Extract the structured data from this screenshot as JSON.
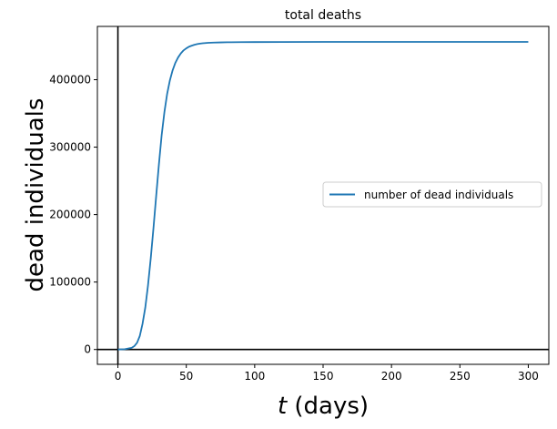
{
  "chart_data": {
    "type": "line",
    "title": "total deaths",
    "xlabel_italic": "t",
    "xlabel_rest": " (days)",
    "ylabel": "dead individuals",
    "xlim": [
      -15,
      315
    ],
    "ylim": [
      -22000,
      479000
    ],
    "xticks": [
      0,
      50,
      100,
      150,
      200,
      250,
      300
    ],
    "yticks": [
      0,
      100000,
      200000,
      300000,
      400000
    ],
    "grid": false,
    "legend_position": "center-right",
    "reference_lines": {
      "x": 0,
      "y": 0,
      "color": "#000000"
    },
    "series": [
      {
        "name": "number of dead individuals",
        "color": "#1f77b4",
        "x": [
          0,
          5,
          10,
          12,
          14,
          16,
          18,
          20,
          22,
          24,
          26,
          28,
          30,
          32,
          34,
          36,
          38,
          40,
          42,
          44,
          46,
          48,
          50,
          52,
          54,
          56,
          58,
          60,
          62,
          64,
          66,
          70,
          75,
          80,
          90,
          100,
          120,
          150,
          200,
          250,
          300
        ],
        "y": [
          0,
          500,
          2500,
          5000,
          10000,
          20000,
          38000,
          62000,
          95000,
          135000,
          180000,
          228000,
          275000,
          318000,
          352000,
          379000,
          399000,
          414000,
          425000,
          433000,
          439000,
          443500,
          446500,
          449000,
          450500,
          451800,
          452800,
          453500,
          454000,
          454400,
          454700,
          455000,
          455300,
          455500,
          455700,
          455800,
          455900,
          456000,
          456000,
          456000,
          456000
        ]
      }
    ]
  }
}
